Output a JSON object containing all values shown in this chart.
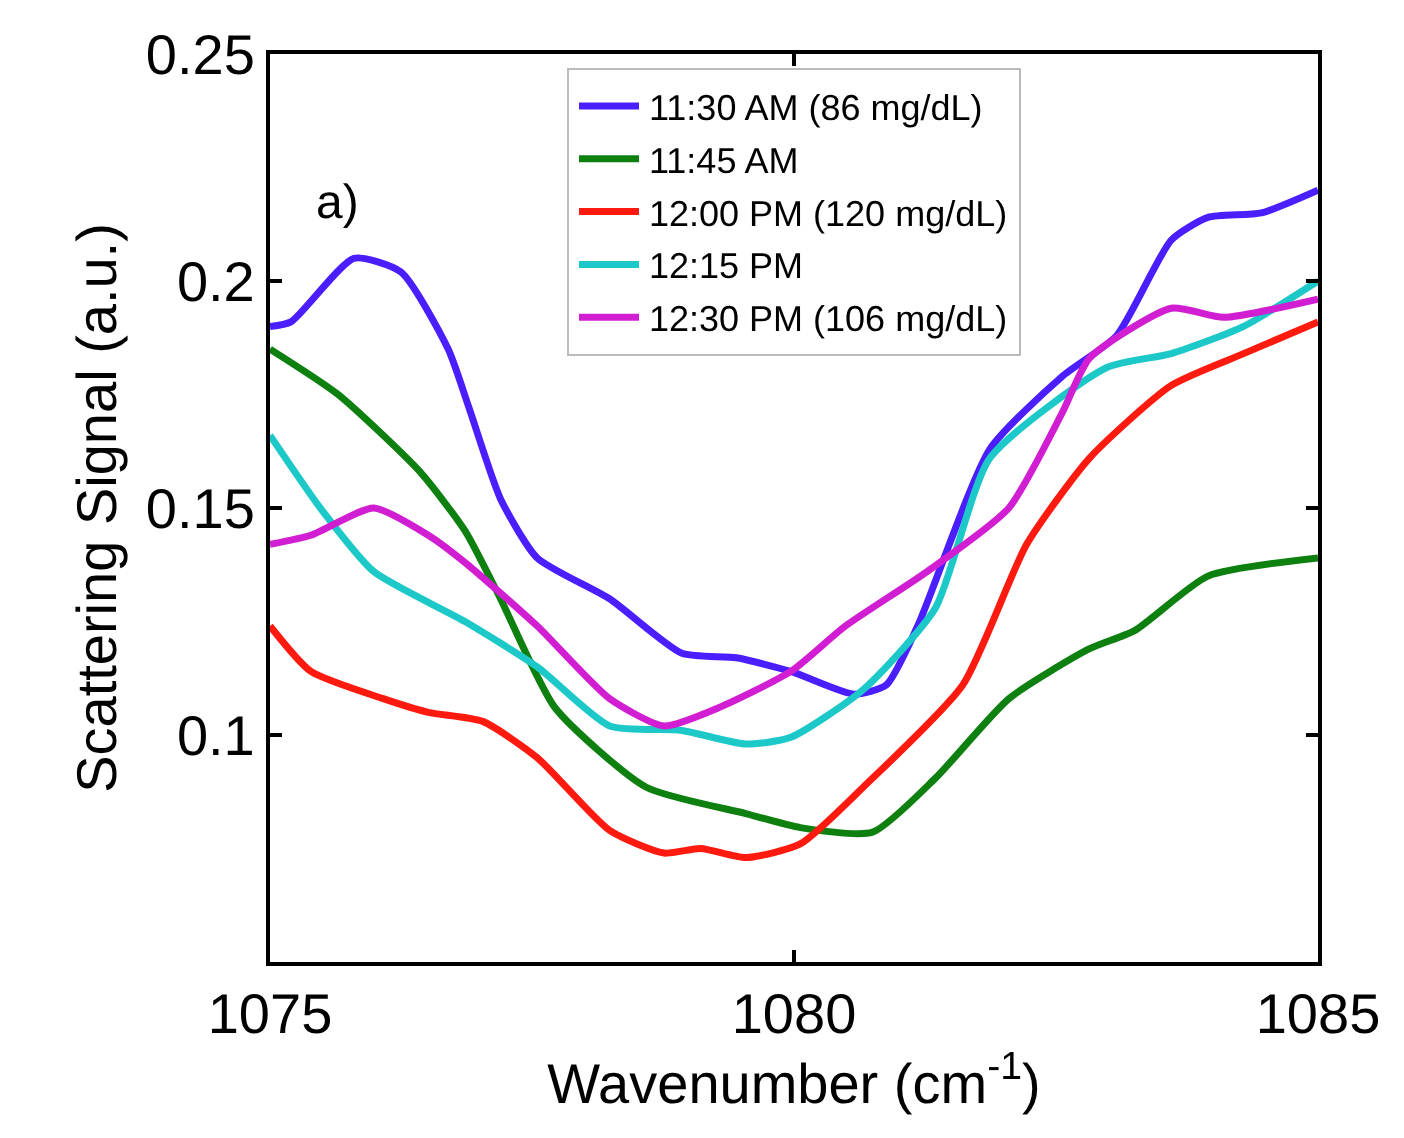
{
  "chart_data": {
    "type": "line",
    "xlabel": "Wavenumber (cm$^{-1}$)",
    "ylabel": "Scattering Signal (a.u.)",
    "annotations": [
      "a)"
    ],
    "xlim": [
      1075,
      1085
    ],
    "xticks": [
      1075,
      1080,
      1085
    ],
    "ylim": [
      0.05,
      0.25
    ],
    "yticks": [
      {
        "value": 0.05,
        "label": null
      },
      0.1,
      0.15,
      0.2,
      0.25
    ],
    "legend": "top",
    "marker": "none",
    "line_style": "solid",
    "series": [
      {
        "name": "11:30 AM (86 mg/dL)",
        "color": "#4b1eff",
        "x": [
          1075,
          1075.2,
          1075.8,
          1076.25,
          1076.7,
          1076.9,
          1077.2,
          1077.55,
          1078.24,
          1078.93,
          1079.45,
          1079.97,
          1080.57,
          1080.88,
          1081.18,
          1081.87,
          1082.56,
          1083.08,
          1083.6,
          1083.95,
          1084.46,
          1085
        ],
        "values": [
          0.19,
          0.191,
          0.205,
          0.202,
          0.185,
          0.172,
          0.152,
          0.139,
          0.13,
          0.118,
          0.117,
          0.114,
          0.109,
          0.111,
          0.124,
          0.163,
          0.179,
          0.188,
          0.209,
          0.214,
          0.215,
          0.22
        ]
      },
      {
        "name": "11:45 AM",
        "color": "#0e8010",
        "x": [
          1075,
          1075.65,
          1076.43,
          1076.86,
          1077.2,
          1077.72,
          1078.59,
          1079.54,
          1080.06,
          1080.75,
          1081.35,
          1082.05,
          1082.82,
          1083.25,
          1083.95,
          1085
        ],
        "values": [
          0.185,
          0.175,
          0.158,
          0.145,
          0.13,
          0.106,
          0.0885,
          0.0827,
          0.0796,
          0.0786,
          0.0905,
          0.108,
          0.119,
          0.123,
          0.135,
          0.139
        ]
      },
      {
        "name": "12:00 PM (120 mg/dL)",
        "color": "#ff1a10",
        "x": [
          1075,
          1075.39,
          1076.08,
          1076.51,
          1077.03,
          1077.55,
          1078.24,
          1078.76,
          1079.11,
          1079.54,
          1080.06,
          1080.66,
          1081.61,
          1082.22,
          1082.82,
          1083.6,
          1084.29,
          1085
        ],
        "values": [
          0.124,
          0.114,
          0.108,
          0.105,
          0.103,
          0.095,
          0.079,
          0.074,
          0.075,
          0.073,
          0.076,
          0.0885,
          0.111,
          0.142,
          0.161,
          0.177,
          0.184,
          0.191
        ]
      },
      {
        "name": "12:15 PM",
        "color": "#1cc8c8",
        "x": [
          1075,
          1075.48,
          1075.99,
          1076.86,
          1077.55,
          1078.24,
          1078.93,
          1079.54,
          1079.97,
          1080.66,
          1081.35,
          1081.87,
          1082.99,
          1083.6,
          1084.29,
          1085
        ],
        "values": [
          0.166,
          0.15,
          0.136,
          0.125,
          0.115,
          0.102,
          0.101,
          0.098,
          0.0995,
          0.11,
          0.128,
          0.161,
          0.181,
          0.184,
          0.19,
          0.2
        ]
      },
      {
        "name": "12:30 PM (106 mg/dL)",
        "color": "#d21ed2",
        "x": [
          1075,
          1075.39,
          1075.99,
          1076.51,
          1076.86,
          1077.55,
          1078.24,
          1078.76,
          1079.28,
          1079.97,
          1080.49,
          1081.27,
          1082.05,
          1082.56,
          1082.82,
          1083.6,
          1084.1,
          1085
        ],
        "values": [
          0.142,
          0.144,
          0.15,
          0.144,
          0.138,
          0.124,
          0.108,
          0.102,
          0.106,
          0.114,
          0.124,
          0.136,
          0.15,
          0.171,
          0.183,
          0.194,
          0.192,
          0.196
        ]
      }
    ]
  }
}
